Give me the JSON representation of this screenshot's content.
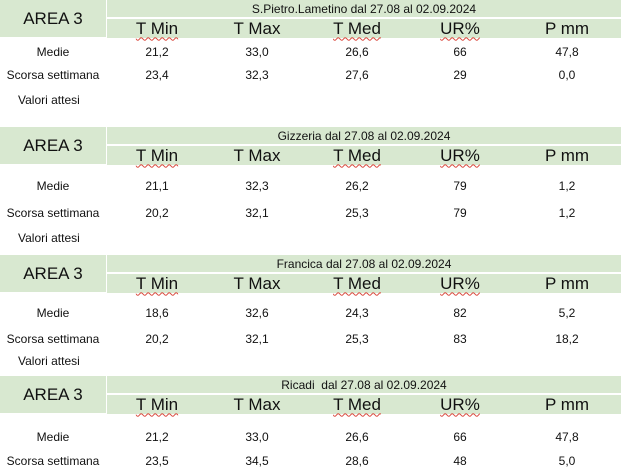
{
  "headers": [
    "T Min",
    "T Max",
    "T Med",
    "UR%",
    "P mm"
  ],
  "blocks": [
    {
      "area": "AREA 3",
      "title": "S.Pietro.Lametino dal 27.08 al 02.09.2024",
      "rows": [
        {
          "label": "Medie",
          "values": [
            "21,2",
            "33,0",
            "26,6",
            "66",
            "47,8"
          ]
        },
        {
          "label": "Scorsa settimana",
          "values": [
            "23,4",
            "32,3",
            "27,6",
            "29",
            "0,0"
          ]
        },
        {
          "label": "Valori attesi",
          "values": []
        }
      ]
    },
    {
      "area": "AREA 3",
      "title": "Gizzeria dal 27.08 al 02.09.2024",
      "rows": [
        {
          "label": "Medie",
          "values": [
            "21,1",
            "32,3",
            "26,2",
            "79",
            "1,2"
          ]
        },
        {
          "label": "Scorsa settimana",
          "values": [
            "20,2",
            "32,1",
            "25,3",
            "79",
            "1,2"
          ]
        },
        {
          "label": "Valori attesi",
          "values": []
        }
      ]
    },
    {
      "area": "AREA 3",
      "title": "Francica dal 27.08 al 02.09.2024",
      "rows": [
        {
          "label": "Medie",
          "values": [
            "18,6",
            "32,6",
            "24,3",
            "82",
            "5,2"
          ]
        },
        {
          "label": "Scorsa settimana",
          "values": [
            "20,2",
            "32,1",
            "25,3",
            "83",
            "18,2"
          ]
        },
        {
          "label": "Valori attesi",
          "values": []
        }
      ]
    },
    {
      "area": "AREA 3",
      "title": "Ricadi  dal 27.08 al 02.09.2024",
      "rows": [
        {
          "label": "Medie",
          "values": [
            "21,2",
            "33,0",
            "26,6",
            "66",
            "47,8"
          ]
        },
        {
          "label": "Scorsa settimana",
          "values": [
            "23,5",
            "34,5",
            "28,6",
            "48",
            "5,0"
          ]
        }
      ]
    }
  ]
}
